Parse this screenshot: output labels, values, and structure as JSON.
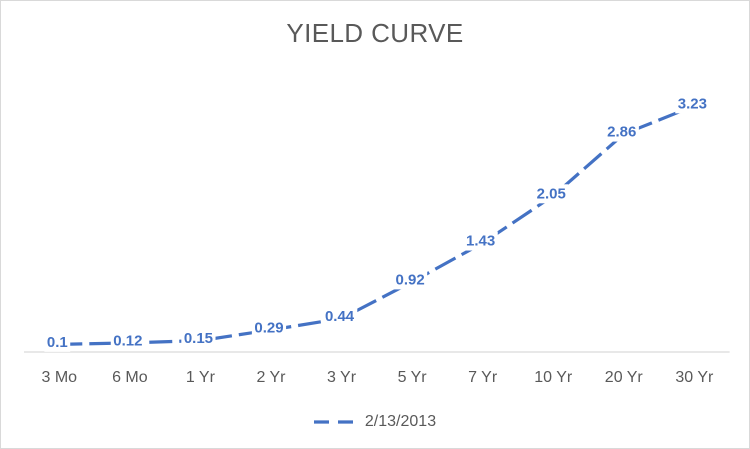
{
  "chart_data": {
    "type": "line",
    "title": "YIELD CURVE",
    "categories": [
      "3 Mo",
      "6 Mo",
      "1 Yr",
      "2 Yr",
      "3 Yr",
      "5 Yr",
      "7 Yr",
      "10 Yr",
      "20 Yr",
      "30 Yr"
    ],
    "series": [
      {
        "name": "2/13/2013",
        "values": [
          0.1,
          0.12,
          0.15,
          0.29,
          0.44,
          0.92,
          1.43,
          2.05,
          2.86,
          3.23
        ],
        "labels": [
          "0.1",
          "0.12",
          "0.15",
          "0.29",
          "0.44",
          "0.92",
          "1.43",
          "2.05",
          "2.86",
          "3.23"
        ]
      }
    ],
    "xlabel": "",
    "ylabel": "",
    "y_axis_visible": false,
    "y_min": 0,
    "grid": false,
    "legend_position": "bottom",
    "line_style": "dashed",
    "data_labels_shown": true,
    "colors": {
      "series": "#4472C4",
      "title_text": "#595959",
      "axis_text": "#595959",
      "axis_line": "#D9D9D9",
      "label_background": "#FFFFFF",
      "border": "#D9D9D9",
      "background": "#FFFFFF"
    }
  }
}
